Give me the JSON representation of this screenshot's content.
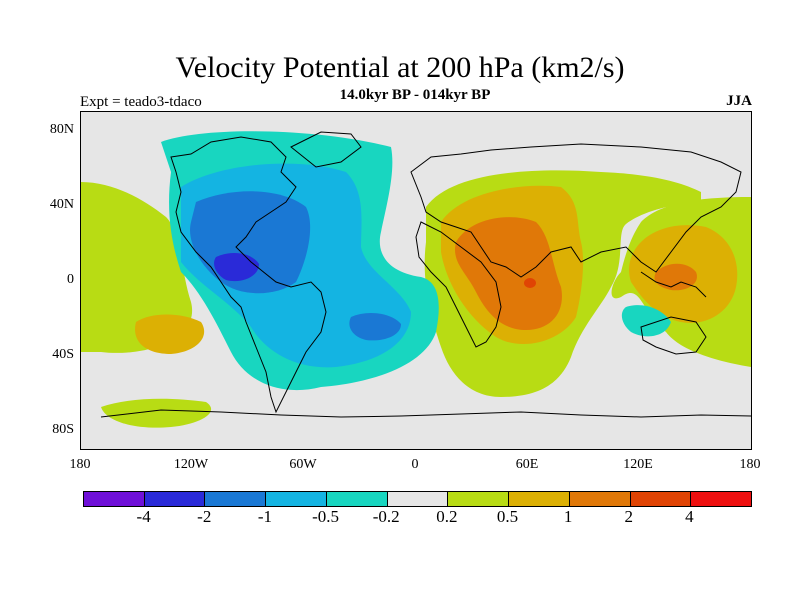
{
  "title": "Velocity Potential at 200 hPa (km2/s)",
  "subtitle": "14.0kyr BP - 014kyr BP",
  "left_label": "Expt = teado3-tdaco",
  "right_label": "JJA",
  "lat_labels": [
    "80N",
    "40N",
    "0",
    "40S",
    "80S"
  ],
  "lon_labels": [
    "180",
    "120W",
    "60W",
    "0",
    "60E",
    "120E",
    "180"
  ],
  "colorbar": {
    "colors": [
      "#6f10d8",
      "#2a2ad8",
      "#1a78d4",
      "#14b4e2",
      "#18d6c0",
      "#e6e6e6",
      "#b8dc14",
      "#dcb004",
      "#e07808",
      "#e04404",
      "#ee1010"
    ],
    "labels": [
      "-4",
      "-2",
      "-1",
      "-0.5",
      "-0.2",
      "0.2",
      "0.5",
      "1",
      "2",
      "4"
    ]
  }
}
